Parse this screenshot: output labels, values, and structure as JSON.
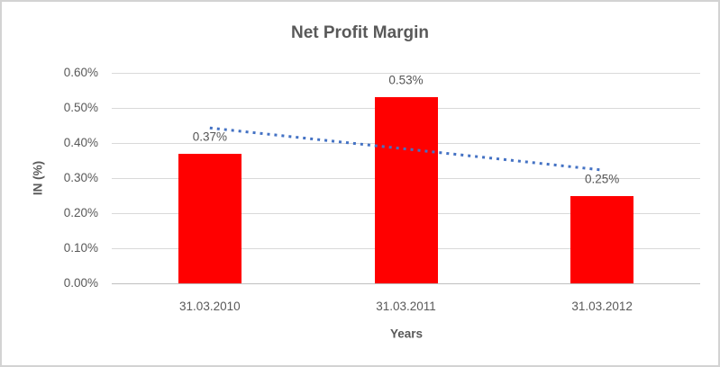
{
  "chart_data": {
    "type": "bar",
    "title": "Net Profit Margin",
    "xlabel": "Years",
    "ylabel": "IN (%)",
    "categories": [
      "31.03.2010",
      "31.03.2011",
      "31.03.2012"
    ],
    "values": [
      0.37,
      0.53,
      0.25
    ],
    "data_labels": [
      "0.37%",
      "0.53%",
      "0.25%"
    ],
    "ylim": [
      0.0,
      0.6
    ],
    "ytick_step": 0.1,
    "ytick_labels": [
      "0.00%",
      "0.10%",
      "0.20%",
      "0.30%",
      "0.40%",
      "0.50%",
      "0.60%"
    ],
    "grid": true,
    "legend": false,
    "trendline": {
      "type": "linear",
      "style": "dotted",
      "start_value": 0.443,
      "end_value": 0.323
    },
    "colors": {
      "bar": "#ff0000",
      "trendline": "#4472c4",
      "text": "#595959",
      "gridline": "#d9d9d9",
      "axis_line": "#bfbfbf",
      "border": "#d3d3d3"
    }
  }
}
